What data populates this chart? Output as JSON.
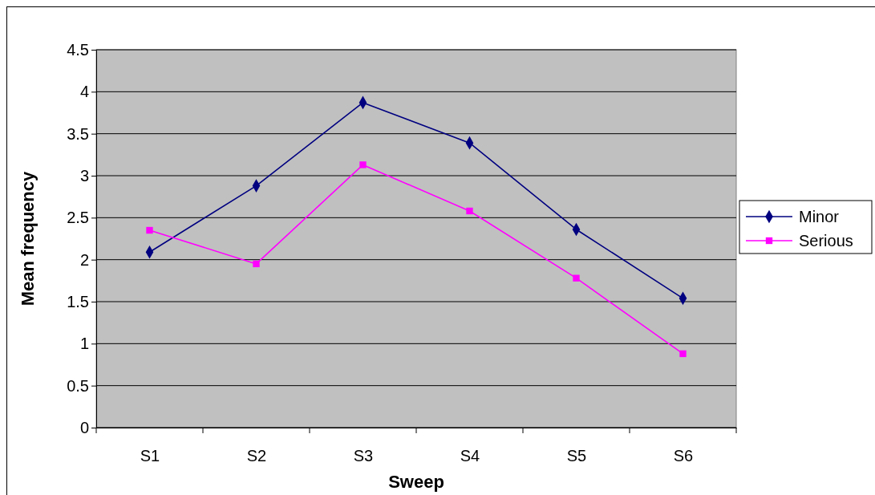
{
  "chart_data": {
    "type": "line",
    "xlabel": "Sweep",
    "ylabel": "Mean frequency",
    "categories": [
      "S1",
      "S2",
      "S3",
      "S4",
      "S5",
      "S6"
    ],
    "series": [
      {
        "name": "Minor",
        "color": "#000080",
        "marker": "diamond",
        "values": [
          2.09,
          2.88,
          3.87,
          3.39,
          2.36,
          1.54
        ]
      },
      {
        "name": "Serious",
        "color": "#ff00ff",
        "marker": "square",
        "values": [
          2.35,
          1.95,
          3.13,
          2.58,
          1.78,
          0.88
        ]
      }
    ],
    "ylim": [
      0,
      4.5
    ],
    "yticks": [
      0,
      0.5,
      1,
      1.5,
      2,
      2.5,
      3,
      3.5,
      4,
      4.5
    ],
    "grid": "y",
    "legend": "right"
  }
}
